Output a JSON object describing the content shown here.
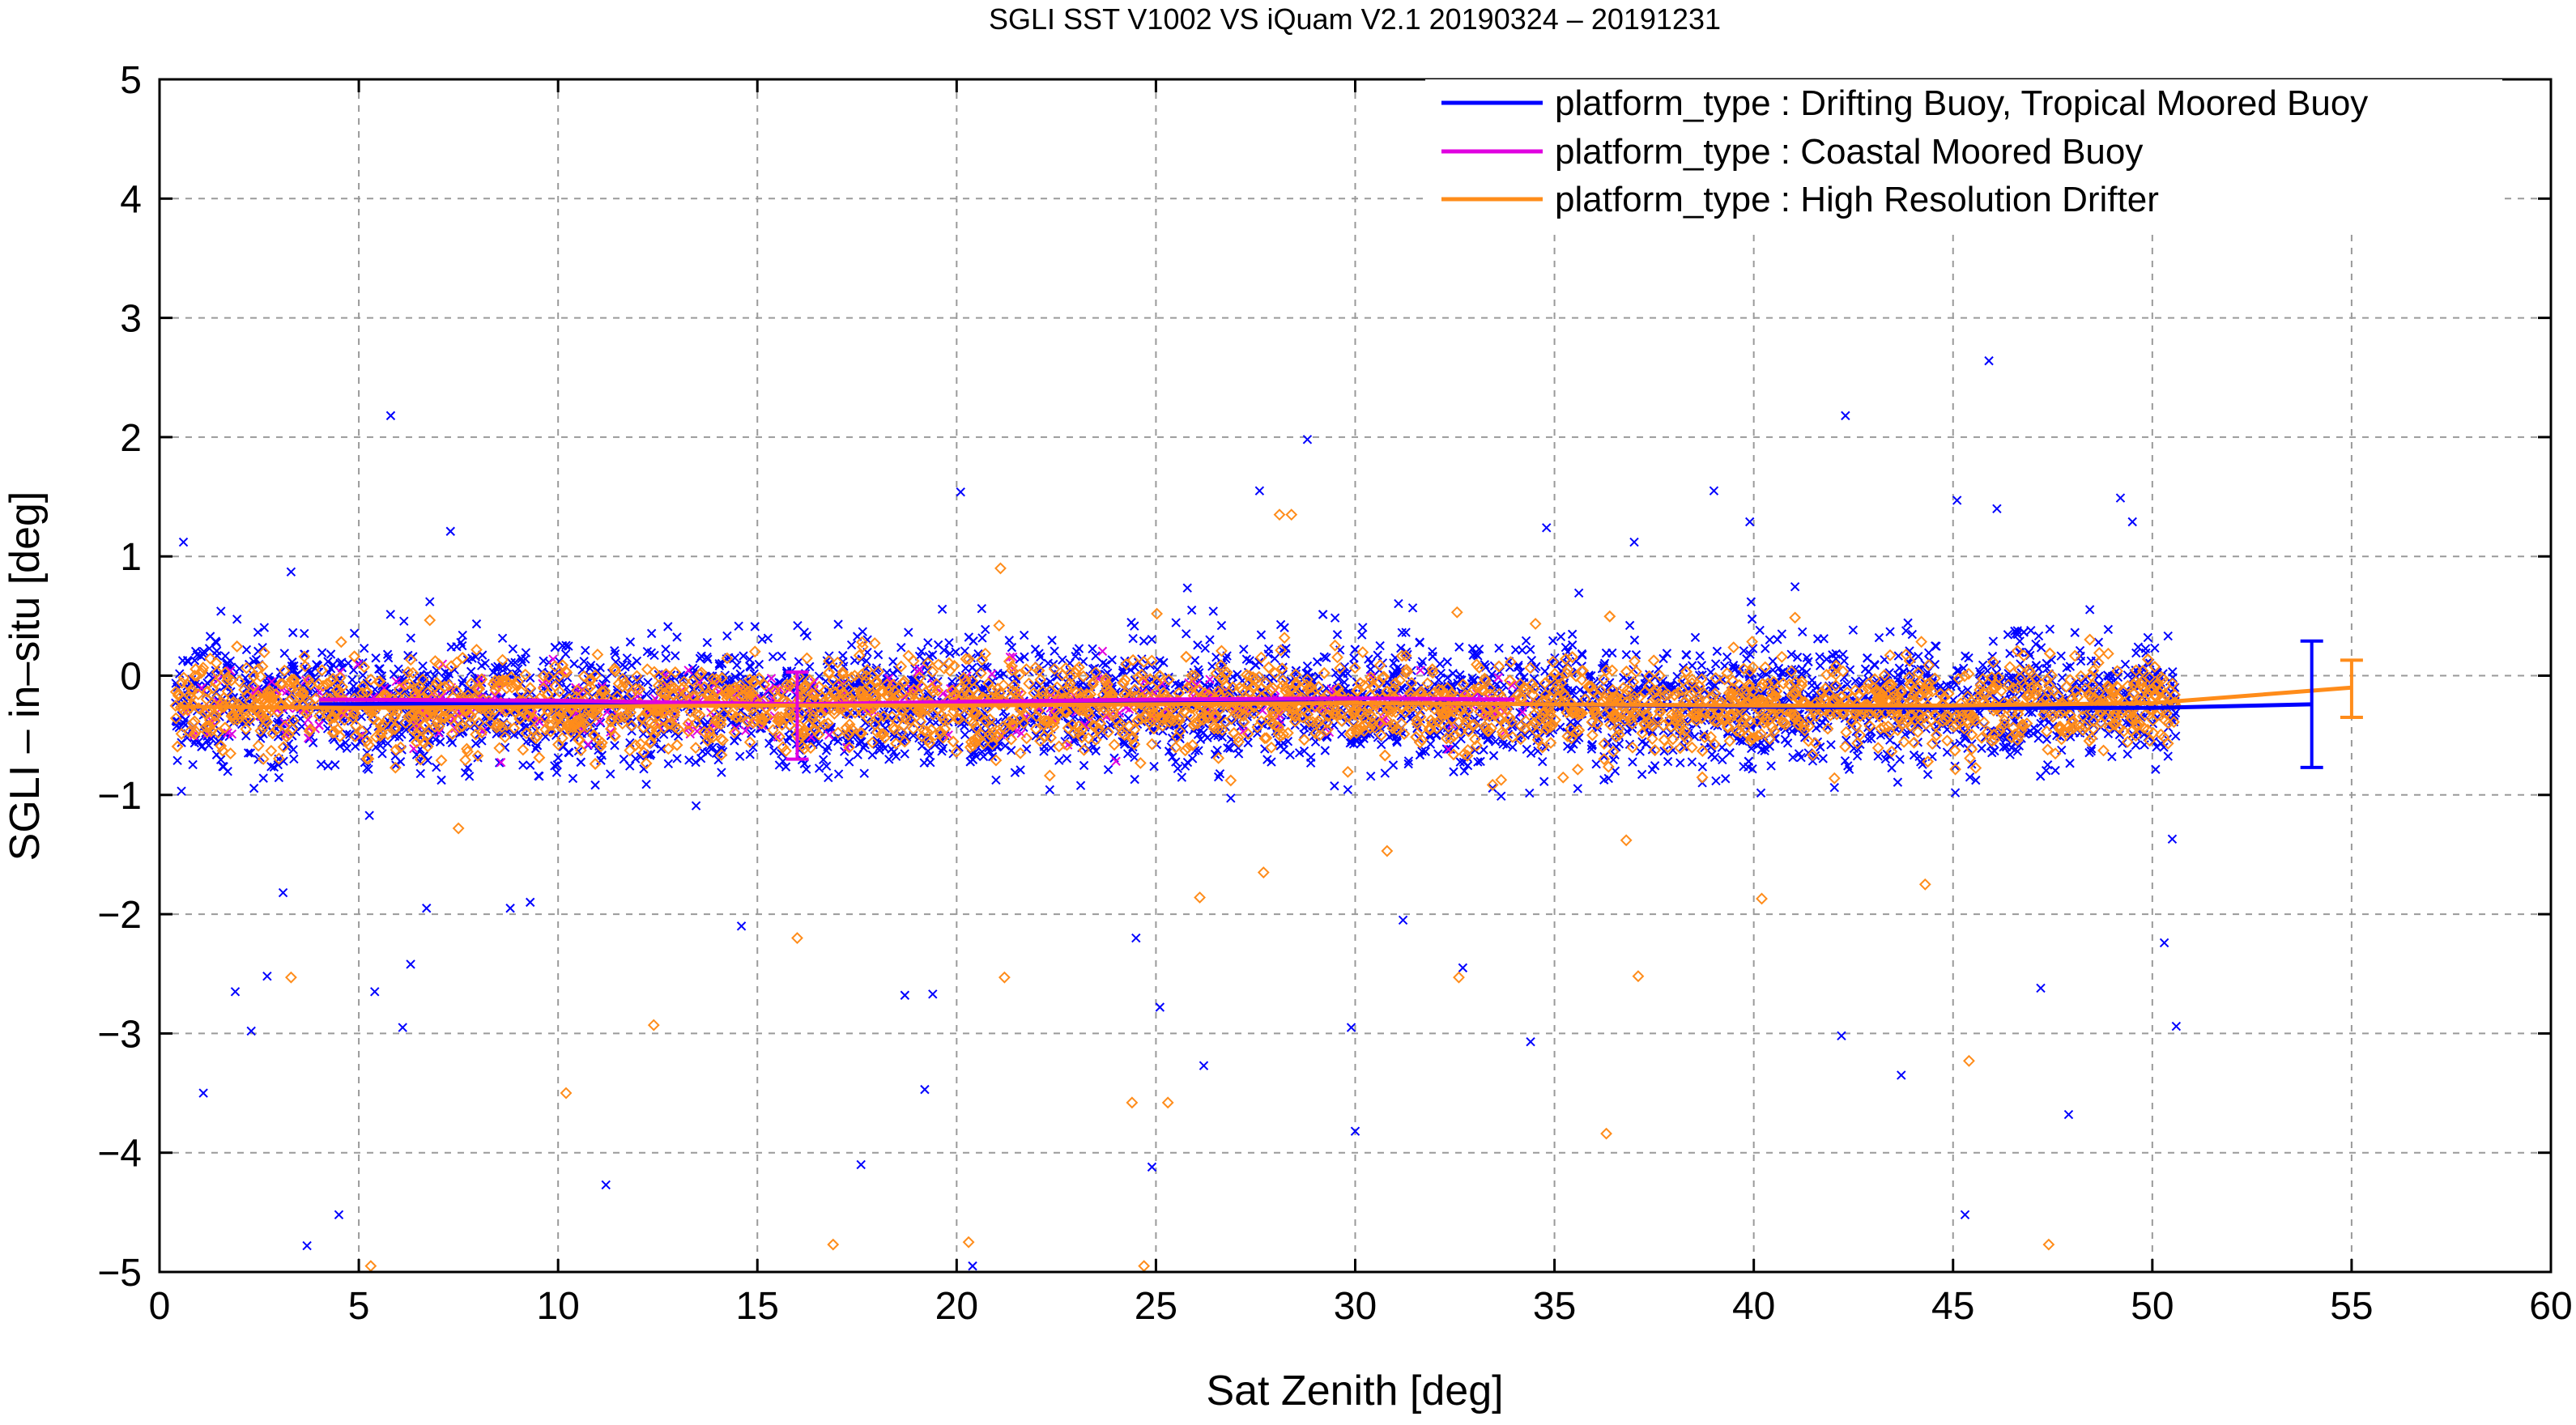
{
  "chart_data": {
    "type": "scatter",
    "title": "SGLI SST V1002 VS iQuam V2.1 20190324 – 20191231",
    "xlabel": "Sat Zenith [deg]",
    "ylabel": "SGLI – in–situ [deg]",
    "xlim": [
      0,
      60
    ],
    "ylim": [
      -5,
      5
    ],
    "xticks": [
      0,
      5,
      10,
      15,
      20,
      25,
      30,
      35,
      40,
      45,
      50,
      55,
      60
    ],
    "yticks": [
      -5,
      -4,
      -3,
      -2,
      -1,
      0,
      1,
      2,
      3,
      4,
      5
    ],
    "xtick_labels": [
      "0",
      "5",
      "10",
      "15",
      "20",
      "25",
      "30",
      "35",
      "40",
      "45",
      "50",
      "55",
      "60"
    ],
    "ytick_labels": [
      "−5",
      "−4",
      "−3",
      "−2",
      "−1",
      "0",
      "1",
      "2",
      "3",
      "4",
      "5"
    ],
    "grid": true,
    "legend_position": "top-right",
    "series": [
      {
        "name": "platform_type : Drifting Buoy, Tropical Moored Buoy",
        "color": "#0000ff",
        "marker": "x",
        "mean_line": {
          "x": [
            4,
            10,
            15,
            20,
            25,
            30,
            35,
            40,
            45,
            50,
            54
          ],
          "y": [
            -0.24,
            -0.23,
            -0.25,
            -0.24,
            -0.22,
            -0.23,
            -0.24,
            -0.26,
            -0.27,
            -0.27,
            -0.24
          ]
        },
        "error_bar": {
          "x": 54,
          "y": -0.24,
          "low": -0.77,
          "high": 0.29
        },
        "outliers": [
          {
            "x": 0.6,
            "y": 1.12
          },
          {
            "x": 1.1,
            "y": -3.5
          },
          {
            "x": 1.9,
            "y": -2.65
          },
          {
            "x": 2.3,
            "y": -2.98
          },
          {
            "x": 2.7,
            "y": -2.52
          },
          {
            "x": 3.1,
            "y": -1.82
          },
          {
            "x": 3.3,
            "y": 0.87
          },
          {
            "x": 3.7,
            "y": -4.78
          },
          {
            "x": 4.5,
            "y": -4.52
          },
          {
            "x": 5.4,
            "y": -2.65
          },
          {
            "x": 5.8,
            "y": 2.18
          },
          {
            "x": 6.1,
            "y": -2.95
          },
          {
            "x": 6.3,
            "y": -2.42
          },
          {
            "x": 6.7,
            "y": -1.95
          },
          {
            "x": 7.3,
            "y": 1.21
          },
          {
            "x": 8.8,
            "y": -1.95
          },
          {
            "x": 9.3,
            "y": -1.9
          },
          {
            "x": 11.2,
            "y": -4.27
          },
          {
            "x": 14.6,
            "y": -2.1
          },
          {
            "x": 17.6,
            "y": -4.1
          },
          {
            "x": 18.7,
            "y": -2.68
          },
          {
            "x": 19.2,
            "y": -3.47
          },
          {
            "x": 19.4,
            "y": -2.67
          },
          {
            "x": 20.1,
            "y": 1.54
          },
          {
            "x": 20.4,
            "y": -4.95
          },
          {
            "x": 24.5,
            "y": -2.2
          },
          {
            "x": 24.9,
            "y": -4.12
          },
          {
            "x": 25.1,
            "y": -2.78
          },
          {
            "x": 26.2,
            "y": -3.27
          },
          {
            "x": 27.6,
            "y": 1.55
          },
          {
            "x": 28.8,
            "y": 1.98
          },
          {
            "x": 29.9,
            "y": -2.95
          },
          {
            "x": 30.0,
            "y": -3.82
          },
          {
            "x": 31.2,
            "y": -2.05
          },
          {
            "x": 32.7,
            "y": -2.45
          },
          {
            "x": 34.4,
            "y": -3.07
          },
          {
            "x": 34.8,
            "y": 1.24
          },
          {
            "x": 37.0,
            "y": 1.12
          },
          {
            "x": 39.0,
            "y": 1.55
          },
          {
            "x": 39.9,
            "y": 1.29
          },
          {
            "x": 42.3,
            "y": 2.18
          },
          {
            "x": 42.2,
            "y": -3.02
          },
          {
            "x": 43.7,
            "y": -3.35
          },
          {
            "x": 45.1,
            "y": 1.47
          },
          {
            "x": 45.3,
            "y": -4.52
          },
          {
            "x": 45.9,
            "y": 2.64
          },
          {
            "x": 46.1,
            "y": 1.4
          },
          {
            "x": 47.2,
            "y": -2.62
          },
          {
            "x": 47.9,
            "y": -3.68
          },
          {
            "x": 49.2,
            "y": 1.49
          },
          {
            "x": 49.5,
            "y": 1.29
          },
          {
            "x": 50.3,
            "y": -2.24
          },
          {
            "x": 50.6,
            "y": -2.94
          },
          {
            "x": 50.5,
            "y": -1.37
          }
        ]
      },
      {
        "name": "platform_type : Coastal Moored Buoy",
        "color": "#e000e0",
        "marker": "x",
        "mean_line": {
          "x": [
            4,
            10,
            16,
            20,
            25,
            30,
            34
          ],
          "y": [
            -0.2,
            -0.21,
            -0.24,
            -0.22,
            -0.2,
            -0.19,
            -0.2
          ]
        },
        "error_bar": {
          "x": 16,
          "y": -0.24,
          "low": -0.7,
          "high": 0.03
        },
        "outliers": []
      },
      {
        "name": "platform_type : High Resolution Drifter",
        "color": "#ff8c1a",
        "marker": "diamond",
        "mean_line": {
          "x": [
            0.5,
            5,
            10,
            15,
            20,
            25,
            30,
            35,
            40,
            45,
            50,
            55
          ],
          "y": [
            -0.26,
            -0.27,
            -0.26,
            -0.25,
            -0.25,
            -0.24,
            -0.23,
            -0.24,
            -0.25,
            -0.25,
            -0.23,
            -0.1
          ]
        },
        "error_bar": {
          "x": 55,
          "y": -0.1,
          "low": -0.35,
          "high": 0.13
        },
        "outliers": [
          {
            "x": 3.3,
            "y": -2.53
          },
          {
            "x": 5.3,
            "y": -4.95
          },
          {
            "x": 7.5,
            "y": -1.28
          },
          {
            "x": 10.2,
            "y": -3.5
          },
          {
            "x": 12.4,
            "y": -2.93
          },
          {
            "x": 16.0,
            "y": -2.2
          },
          {
            "x": 16.9,
            "y": -4.77
          },
          {
            "x": 20.3,
            "y": -4.75
          },
          {
            "x": 21.2,
            "y": -2.53
          },
          {
            "x": 21.1,
            "y": 0.9
          },
          {
            "x": 24.4,
            "y": -3.58
          },
          {
            "x": 24.7,
            "y": -4.95
          },
          {
            "x": 25.3,
            "y": -3.58
          },
          {
            "x": 26.1,
            "y": -1.86
          },
          {
            "x": 27.7,
            "y": -1.65
          },
          {
            "x": 28.1,
            "y": 1.35
          },
          {
            "x": 28.4,
            "y": 1.35
          },
          {
            "x": 30.8,
            "y": -1.47
          },
          {
            "x": 32.6,
            "y": -2.53
          },
          {
            "x": 36.3,
            "y": -3.84
          },
          {
            "x": 37.1,
            "y": -2.52
          },
          {
            "x": 40.2,
            "y": -1.87
          },
          {
            "x": 45.4,
            "y": -3.23
          },
          {
            "x": 47.4,
            "y": -4.77
          },
          {
            "x": 44.3,
            "y": -1.75
          },
          {
            "x": 36.8,
            "y": -1.38
          }
        ]
      }
    ]
  }
}
